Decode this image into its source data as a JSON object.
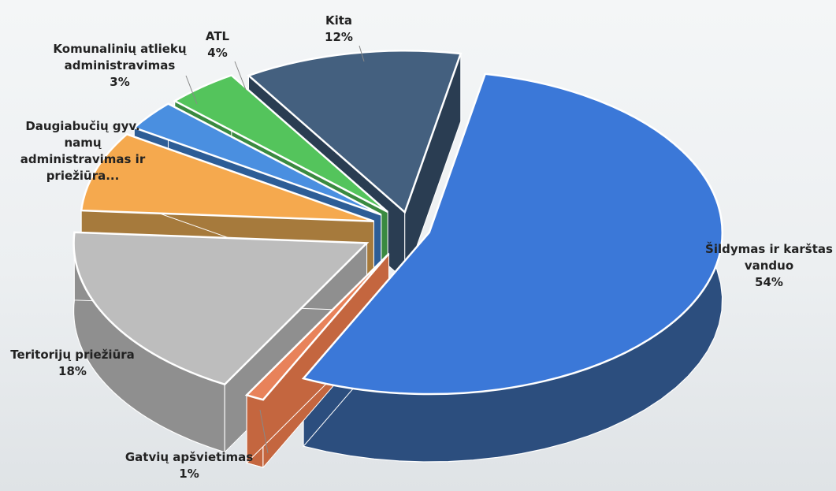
{
  "chart_data": {
    "type": "pie",
    "style": "3d-exploded",
    "title": "",
    "slices": [
      {
        "name": "Šildymas ir karštas vanduo",
        "value": 54,
        "label": "54%",
        "color": "#3b78d8",
        "side": "#2c4e7e"
      },
      {
        "name": "Gatvių apšvietimas",
        "value": 1,
        "label": "1%",
        "color": "#e8825a",
        "side": "#c4663f"
      },
      {
        "name": "Teritorijų priežiūra",
        "value": 18,
        "label": "18%",
        "color": "#bdbdbd",
        "side": "#8f8f8f"
      },
      {
        "name": "Daugiabučių gyv. namų administravimas ir priežiūra...",
        "value": 8,
        "label": "",
        "color": "#f5a94e",
        "side": "#a67a3c"
      },
      {
        "name": "Komunalinių atliekų administravimas",
        "value": 3,
        "label": "3%",
        "color": "#4a8fe0",
        "side": "#2d5d96"
      },
      {
        "name": "ATL",
        "value": 4,
        "label": "4%",
        "color": "#54c45c",
        "side": "#3a8a40"
      },
      {
        "name": "Kita",
        "value": 12,
        "label": "12%",
        "color": "#44607f",
        "side": "#2a3d52"
      }
    ],
    "labels": {
      "sildymas": {
        "lines": [
          "Šildymas ir karštas",
          "vanduo"
        ],
        "pct": "54%"
      },
      "gatviu": {
        "lines": [
          "Gatvių apšvietimas"
        ],
        "pct": "1%"
      },
      "teritoriju": {
        "lines": [
          "Teritorijų priežiūra"
        ],
        "pct": "18%"
      },
      "daugiabuciu": {
        "lines": [
          "Daugiabučių gyv.",
          "namų",
          "administravimas ir",
          "priežiūra..."
        ],
        "pct": ""
      },
      "komunaliniu": {
        "lines": [
          "Komunalinių atliekų",
          "administravimas"
        ],
        "pct": "3%"
      },
      "atl": {
        "lines": [
          "ATL"
        ],
        "pct": "4%"
      },
      "kita": {
        "lines": [
          "Kita"
        ],
        "pct": "12%"
      }
    }
  }
}
